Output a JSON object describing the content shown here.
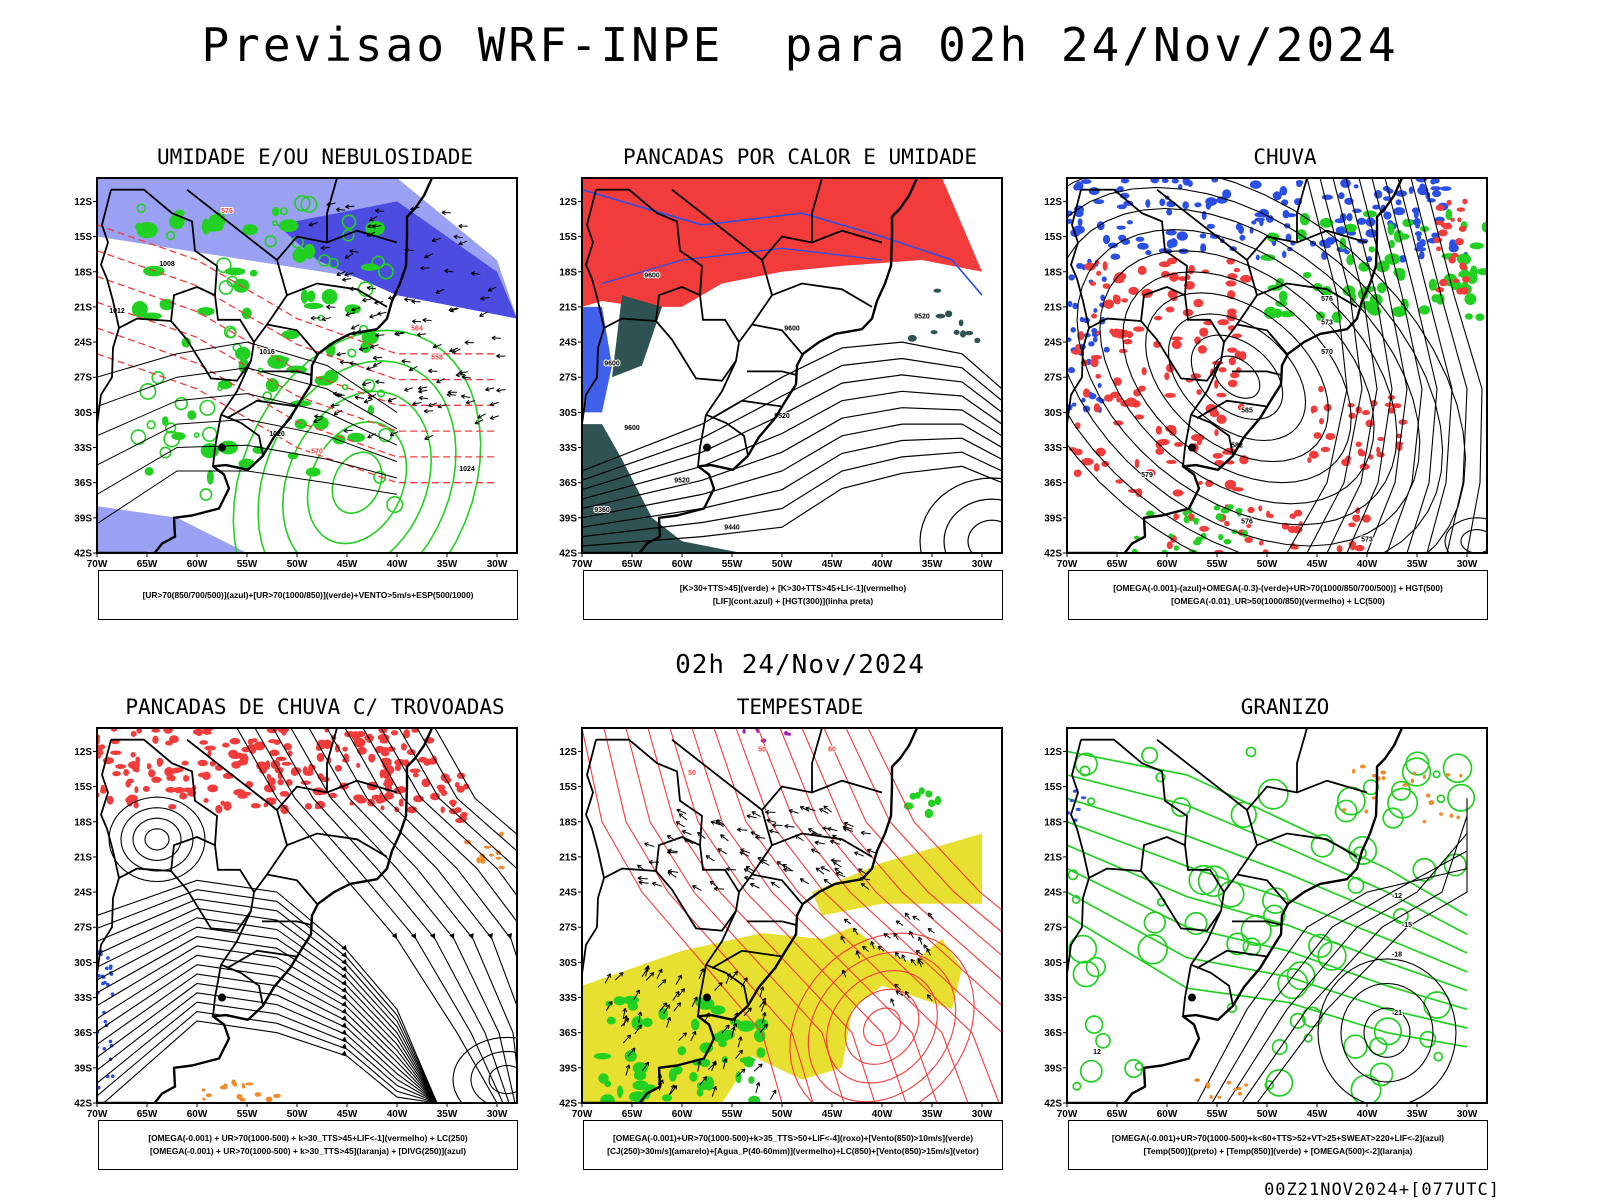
{
  "header": {
    "title": "Previsao WRF-INPE  para 02h 24/Nov/2024",
    "mid_time": "02h 24/Nov/2024",
    "run_info": "00Z21NOV2024+[077UTC]"
  },
  "axes": {
    "lat_labels": [
      "12S",
      "15S",
      "18S",
      "21S",
      "24S",
      "27S",
      "30S",
      "33S",
      "36S",
      "39S",
      "42S"
    ],
    "lon_labels": [
      "70W",
      "65W",
      "60W",
      "55W",
      "50W",
      "45W",
      "40W",
      "35W",
      "30W"
    ],
    "lat_range": [
      -42,
      -10
    ],
    "lon_range": [
      -70,
      -28
    ]
  },
  "colors": {
    "blue": "#2a4fe6",
    "light_blue": "#9aa0f2",
    "violet": "#4c4ce0",
    "green": "#22d022",
    "red": "#f23c3c",
    "dark_teal": "#2f5252",
    "orange": "#f08a2a",
    "yellow": "#e8e030",
    "black": "#000000"
  },
  "panels": [
    {
      "id": "umidade",
      "title": "UMIDADE E/OU NEBULOSIDADE",
      "legend": [
        "[UR>70(850/700/500)](azul)+[UR>70(1000/850)](verde)+VENTO>5m/s+ESP(500/1000)"
      ],
      "contour_labels": [
        "1008",
        "1012",
        "1016",
        "1020",
        "1024",
        "576",
        "570",
        "564",
        "558"
      ]
    },
    {
      "id": "pancadas",
      "title": "PANCADAS POR CALOR E UMIDADE",
      "legend": [
        "[K>30+TTS>45](verde) + [K>30+TTS>45+LI<-1](vermelho)",
        "[LIF](cont.azul) + [HGT(300)](linha preta)"
      ],
      "contour_labels": [
        "9600",
        "9520",
        "9440",
        "9360"
      ]
    },
    {
      "id": "chuva",
      "title": "CHUVA",
      "legend": [
        "[OMEGA(-0.001)-(azul)+OMEGA(-0.3)-(verde)+UR>70(1000/850/700/500)] + HGT(500)",
        "[OMEGA(-0.01)_UR>50(1000/850)(vermelho) + LC(500)"
      ],
      "contour_labels": [
        "585",
        "582",
        "579",
        "576",
        "573",
        "570"
      ]
    },
    {
      "id": "trovoadas",
      "title": "PANCADAS DE CHUVA C/ TROVOADAS",
      "legend": [
        "[OMEGA(-0.001) + UR>70(1000-500) + k>30_TTS>45+LIF<-1](vermelho) + LC(250)",
        "[OMEGA(-0.001) + UR>70(1000-500) + k>30_TTS>45](laranja) + [DIVG(250)](azul)"
      ],
      "contour_labels": []
    },
    {
      "id": "tempestade",
      "title": "TEMPESTADE",
      "legend": [
        "[OMEGA(-0.001)+UR>70(1000-500)+k>35_TTS>50+LIF<-4](roxo)+[Vento(850)>10m/s](verde)",
        "[CJ(250)>30m/s](amarelo)+[Agua_P(40-60mm)](vermelho)+LC(850)+[Vento(850)>15m/s](vetor)"
      ],
      "contour_labels": [
        "50",
        "60"
      ]
    },
    {
      "id": "granizo",
      "title": "GRANIZO",
      "legend": [
        "[OMEGA(-0.001)+UR>70(1000-500)+k<60+TTS>52+VT>25+SWEAT>220+LIF<-2](azul)",
        "[Temp(500)](preto) + [Temp(850)](verde) + [OMEGA(500)<-2](laranja)"
      ],
      "contour_labels": [
        "-12",
        "-15",
        "-18",
        "-21",
        "12"
      ]
    }
  ]
}
